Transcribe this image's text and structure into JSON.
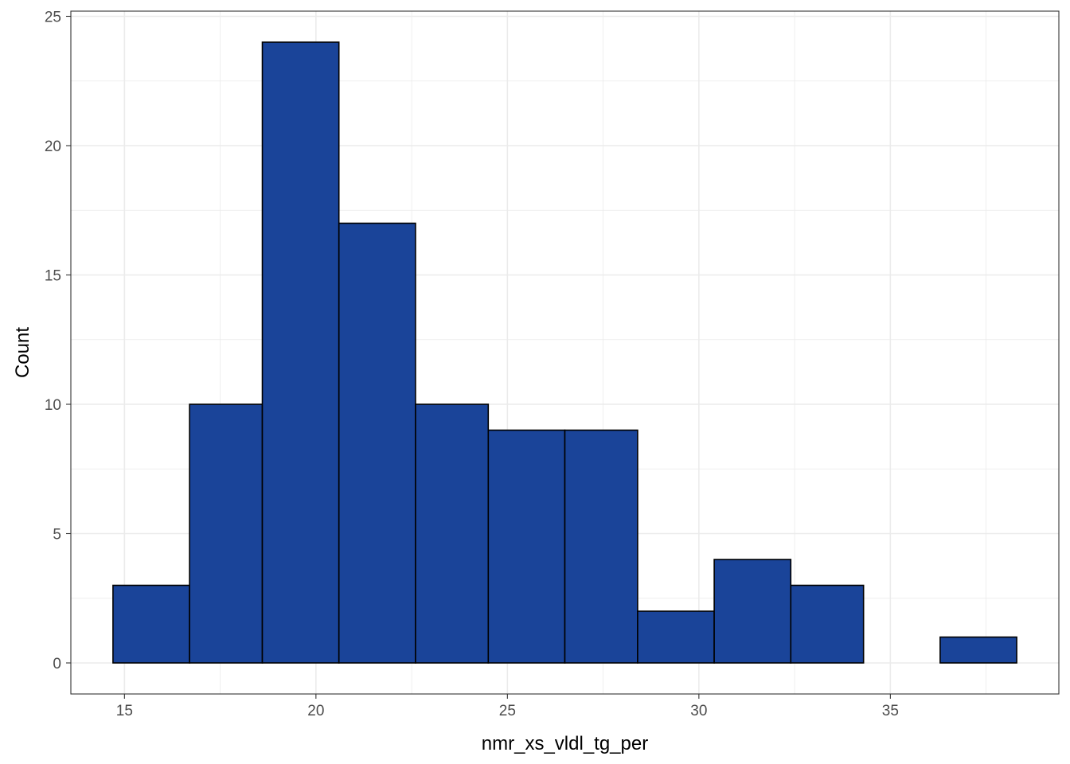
{
  "chart_data": {
    "type": "bar",
    "subtype": "histogram",
    "xlabel": "nmr_xs_vldl_tg_per",
    "ylabel": "Count",
    "xlim": [
      13.6,
      39.4
    ],
    "ylim": [
      -1.2,
      25.2
    ],
    "x_ticks": [
      15,
      20,
      25,
      30,
      35
    ],
    "y_ticks": [
      0,
      5,
      10,
      15,
      20,
      25
    ],
    "grid": true,
    "theme": "bw",
    "bins": [
      {
        "x0": 14.7,
        "x1": 16.7,
        "count": 3
      },
      {
        "x0": 16.7,
        "x1": 18.6,
        "count": 10
      },
      {
        "x0": 18.6,
        "x1": 20.6,
        "count": 24
      },
      {
        "x0": 20.6,
        "x1": 22.6,
        "count": 17
      },
      {
        "x0": 22.6,
        "x1": 24.5,
        "count": 10
      },
      {
        "x0": 24.5,
        "x1": 26.5,
        "count": 9
      },
      {
        "x0": 26.5,
        "x1": 28.4,
        "count": 9
      },
      {
        "x0": 28.4,
        "x1": 30.4,
        "count": 2
      },
      {
        "x0": 30.4,
        "x1": 32.4,
        "count": 4
      },
      {
        "x0": 32.4,
        "x1": 34.3,
        "count": 3
      },
      {
        "x0": 34.3,
        "x1": 36.3,
        "count": 0
      },
      {
        "x0": 36.3,
        "x1": 38.3,
        "count": 1
      }
    ],
    "colors": {
      "fill": "#1a4499",
      "outline": "#000000",
      "grid": "#ebebeb",
      "panel_border": "#333333",
      "tick_text": "#4d4d4d"
    }
  }
}
